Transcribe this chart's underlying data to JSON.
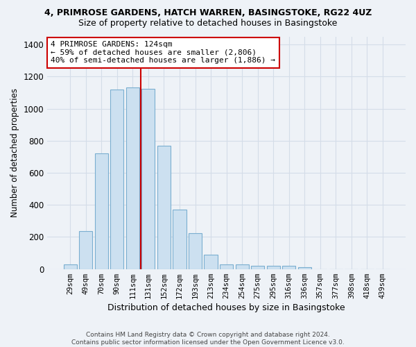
{
  "title1": "4, PRIMROSE GARDENS, HATCH WARREN, BASINGSTOKE, RG22 4UZ",
  "title2": "Size of property relative to detached houses in Basingstoke",
  "xlabel": "Distribution of detached houses by size in Basingstoke",
  "ylabel": "Number of detached properties",
  "categories": [
    "29sqm",
    "49sqm",
    "70sqm",
    "90sqm",
    "111sqm",
    "131sqm",
    "152sqm",
    "172sqm",
    "193sqm",
    "213sqm",
    "234sqm",
    "254sqm",
    "275sqm",
    "295sqm",
    "316sqm",
    "336sqm",
    "357sqm",
    "377sqm",
    "398sqm",
    "418sqm",
    "439sqm"
  ],
  "values": [
    30,
    235,
    720,
    1120,
    1130,
    1125,
    770,
    370,
    225,
    90,
    30,
    30,
    20,
    20,
    20,
    10,
    0,
    0,
    0,
    0,
    0
  ],
  "bar_color": "#cce0f0",
  "bar_edge_color": "#7aaed0",
  "vline_color": "#cc0000",
  "annotation_text": "4 PRIMROSE GARDENS: 124sqm\n← 59% of detached houses are smaller (2,806)\n40% of semi-detached houses are larger (1,886) →",
  "annotation_box_color": "#ffffff",
  "annotation_box_edge": "#cc0000",
  "ylim": [
    0,
    1450
  ],
  "yticks": [
    0,
    200,
    400,
    600,
    800,
    1000,
    1200,
    1400
  ],
  "footnote": "Contains HM Land Registry data © Crown copyright and database right 2024.\nContains public sector information licensed under the Open Government Licence v3.0.",
  "grid_color": "#d4dde8",
  "bg_color": "#eef2f7"
}
